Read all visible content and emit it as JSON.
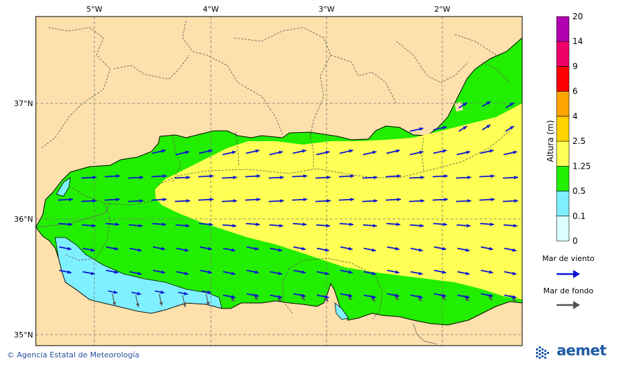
{
  "map": {
    "lon_ticks": [
      "5°W",
      "4°W",
      "3°W",
      "2°W"
    ],
    "lat_ticks": [
      "37°N",
      "36°N",
      "35°N"
    ]
  },
  "legend": {
    "title": "Altura (m)",
    "levels": [
      "0",
      "0.1",
      "0.5",
      "1.25",
      "2.5",
      "4",
      "6",
      "9",
      "14",
      "20"
    ],
    "colors": [
      "#dcffff",
      "#7ff0ff",
      "#22ee00",
      "#ffff55",
      "#ffd200",
      "#ffa500",
      "#ff0000",
      "#ee0066",
      "#b000b0"
    ],
    "wind_sea_label": "Mar de viento",
    "swell_label": "Mar de fondo",
    "wind_sea_color": "#0a14d2",
    "swell_color": "#555555"
  },
  "footer": {
    "credit": "© Agencia Estatal de Meteorología",
    "logo_text": "aemet"
  },
  "colors": {
    "land": "#fde0ab",
    "border": "#666666",
    "grid": "#777777"
  }
}
